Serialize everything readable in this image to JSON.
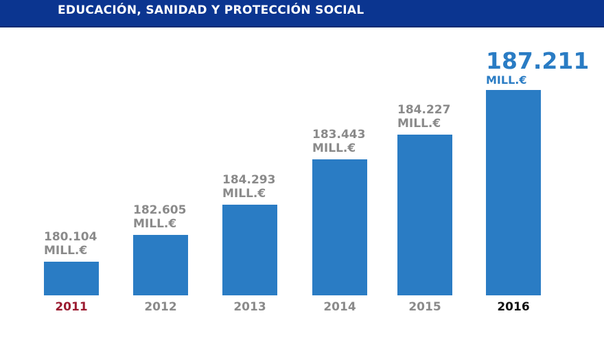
{
  "header": {
    "title": "EDUCACIÓN, SANIDAD Y PROTECCIÓN SOCIAL"
  },
  "chart_data": {
    "type": "bar",
    "title": "EDUCACIÓN, SANIDAD Y PROTECCIÓN SOCIAL",
    "categories": [
      "2011",
      "2012",
      "2013",
      "2014",
      "2015",
      "2016"
    ],
    "values": [
      180104,
      182605,
      184293,
      183443,
      184227,
      187211
    ],
    "value_labels": [
      "180.104",
      "182.605",
      "184.293",
      "183.443",
      "184.227",
      "187.211"
    ],
    "unit": "MILL.€",
    "xlabel": "",
    "ylabel": "",
    "grid": false,
    "colors": {
      "bar": "#2a7cc4",
      "header": "#0b3590",
      "first_year": "#9b1b30",
      "last_year": "#111111",
      "label": "#8a8a8a"
    }
  }
}
